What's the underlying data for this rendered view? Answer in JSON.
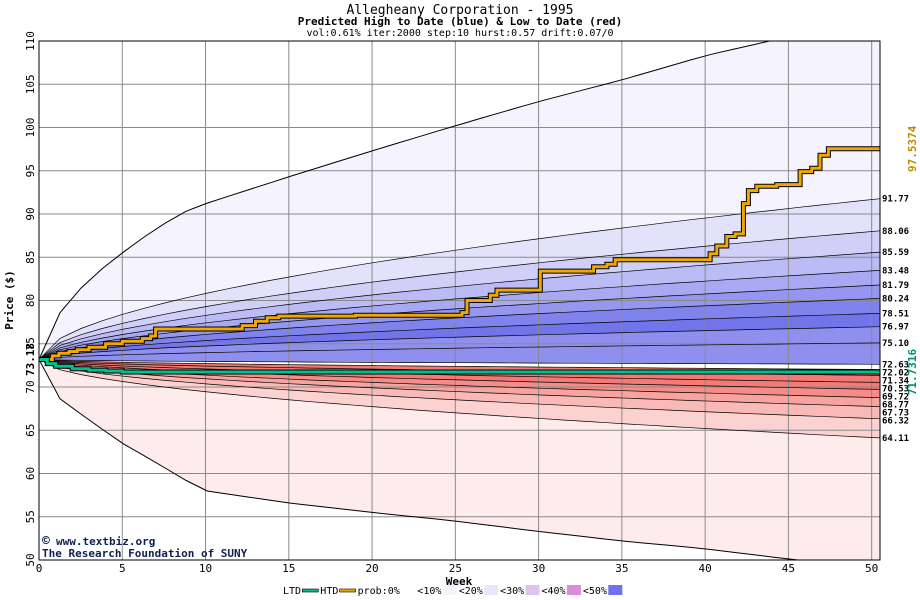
{
  "chart_data": {
    "type": "area",
    "title": "Allegheany Corporation - 1995",
    "subtitle": "Predicted High to Date (blue) &  Low to Date (red)",
    "params": "vol:0.61% iter:2000 step:10 hurst:0.57 drift:0.07/0",
    "xlabel": "Week",
    "ylabel": "Price ($)",
    "xlim": [
      0,
      50.5
    ],
    "ylim": [
      50,
      110
    ],
    "xticks": [
      "0",
      "5",
      "10",
      "15",
      "20",
      "25",
      "30",
      "35",
      "40",
      "45",
      "50"
    ],
    "yticks": [
      "50",
      "55",
      "60",
      "65",
      "70",
      "75",
      "80",
      "85",
      "90",
      "95",
      "100",
      "105",
      "110"
    ],
    "grid": true,
    "start_value": 73.18,
    "start_label": "73.18",
    "high_band_levels": [
      {
        "label": "91.77",
        "value": 91.77
      },
      {
        "label": "88.06",
        "value": 88.06
      },
      {
        "label": "85.59",
        "value": 85.59
      },
      {
        "label": "83.48",
        "value": 83.48
      },
      {
        "label": "81.79",
        "value": 81.79
      },
      {
        "label": "80.24",
        "value": 80.24
      },
      {
        "label": "78.51",
        "value": 78.51
      },
      {
        "label": "76.97",
        "value": 76.97
      },
      {
        "label": "75.10",
        "value": 75.1
      },
      {
        "label": "72.63",
        "value": 72.63
      }
    ],
    "low_band_levels": [
      {
        "label": "72.02",
        "value": 72.02
      },
      {
        "label": "71.34",
        "value": 71.34
      },
      {
        "label": "70.53",
        "value": 70.53
      },
      {
        "label": "69.72",
        "value": 69.72
      },
      {
        "label": "68.77",
        "value": 68.77
      },
      {
        "label": "67.73",
        "value": 67.73
      },
      {
        "label": "66.32",
        "value": 66.32
      },
      {
        "label": "64.11",
        "value": 64.11
      }
    ],
    "outer_high_curve": {
      "x": [
        0,
        1,
        3,
        5,
        7,
        9,
        10,
        15,
        20,
        25,
        30,
        35,
        40,
        45,
        50.5
      ],
      "y": [
        73.18,
        78,
        82.5,
        85.5,
        88.3,
        90.5,
        91.2,
        94.3,
        97.3,
        100.2,
        103,
        105.5,
        108.3,
        110.5,
        113
      ]
    },
    "outer_low_curve": {
      "x": [
        0,
        1,
        3,
        5,
        7,
        9,
        10,
        15,
        20,
        25,
        30,
        35,
        40,
        45,
        50.5
      ],
      "y": [
        73.18,
        69,
        66.2,
        63.5,
        61.3,
        59,
        58,
        56.6,
        55.5,
        54.5,
        53.3,
        52.2,
        51.3,
        50.1,
        49.2
      ]
    },
    "series": [
      {
        "name": "HTD",
        "step_x": [
          0,
          0.8,
          1.2,
          1.8,
          2.3,
          3,
          4,
          5,
          6.2,
          6.7,
          7,
          11.8,
          12.2,
          13,
          13.7,
          14.4,
          18,
          19,
          24,
          25.4,
          25.7,
          27.1,
          27.5,
          29.7,
          30.1,
          32.8,
          33.3,
          34.1,
          34.6,
          39.7,
          40.3,
          40.7,
          41.3,
          41.8,
          42.3,
          42.6,
          43.1,
          43.5,
          44.3,
          45,
          45.7,
          46.4,
          46.9,
          47.4,
          50.5
        ],
        "values": [
          73.18,
          73.6,
          73.9,
          74.1,
          74.3,
          74.6,
          75,
          75.3,
          75.6,
          75.9,
          76.7,
          76.7,
          77.1,
          77.6,
          78,
          78.2,
          78.2,
          78.3,
          78.3,
          78.6,
          80,
          80.6,
          81.2,
          81.2,
          83.4,
          83.4,
          83.9,
          84.2,
          84.7,
          84.7,
          85.4,
          86.3,
          87.4,
          87.7,
          91.2,
          92.7,
          93.2,
          93.2,
          93.4,
          93.4,
          94.9,
          95.3,
          96.8,
          97.5374,
          97.5374
        ],
        "end_label": "97.5374",
        "color": "#f0a800"
      },
      {
        "name": "LTD",
        "step_x": [
          0,
          0.5,
          1,
          2,
          3,
          4,
          5,
          50.5
        ],
        "values": [
          73.18,
          72.7,
          72.4,
          72.1,
          71.95,
          71.85,
          71.7316,
          71.7316
        ],
        "end_label": "71.7316",
        "color": "#00c090"
      }
    ]
  },
  "watermark": {
    "line1": "www.textbiz.org",
    "line2": "The Research Foundation of SUNY",
    "symbol": "©"
  },
  "legend": {
    "items": [
      {
        "label": "LTD",
        "swatch": "#00c090",
        "kind": "line"
      },
      {
        "label": "HTD",
        "swatch": "#f0a800",
        "kind": "line"
      },
      {
        "label": "prob:0%",
        "swatch": "#ffffff",
        "kind": "box"
      },
      {
        "label": "<10%",
        "swatch": "#f7f4fd",
        "kind": "box"
      },
      {
        "label": "<20%",
        "swatch": "#e8e6fa",
        "kind": "box"
      },
      {
        "label": "<30%",
        "swatch": "#dcc4ee",
        "kind": "box"
      },
      {
        "label": "<40%",
        "swatch": "#d68fd6",
        "kind": "box"
      },
      {
        "label": "<50%",
        "swatch": "#7070f0",
        "kind": "box"
      }
    ],
    "prefix": "<",
    "suffix": "<"
  },
  "colors": {
    "blue_bands": [
      "#f4f3fe",
      "#e2e2fb",
      "#cfcff8",
      "#bbbcf5",
      "#a8a9f2",
      "#9596ef",
      "#8183ec",
      "#7274ea",
      "#8f90ee"
    ],
    "red_bands": [
      "#fdeceb",
      "#fbd2d0",
      "#f9bab7",
      "#f7a3a0",
      "#f58c88",
      "#f57a76",
      "#f47874"
    ],
    "start_label_color": "#000000",
    "htd_label_color": "#c08a00",
    "ltd_label_color": "#009070"
  }
}
